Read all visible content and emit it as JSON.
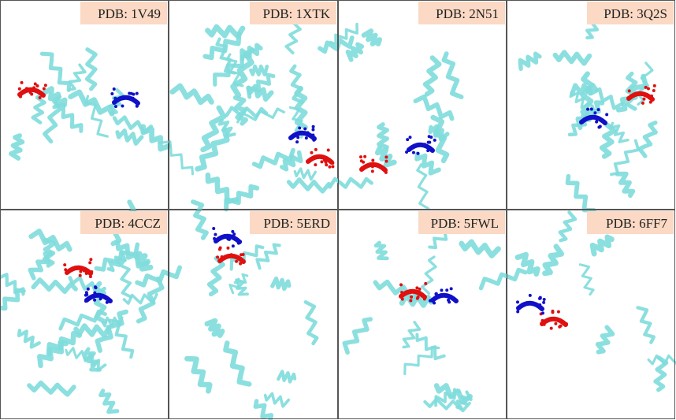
{
  "panels": [
    {
      "label": "PDB: 1V49"
    },
    {
      "label": "PDB: 1XTK"
    },
    {
      "label": "PDB: 2N51"
    },
    {
      "label": "PDB: 3Q2S"
    },
    {
      "label": "PDB: 4CCZ"
    },
    {
      "label": "PDB: 5ERD"
    },
    {
      "label": "PDB: 5FWL"
    },
    {
      "label": "PDB: 6FF7"
    }
  ]
}
